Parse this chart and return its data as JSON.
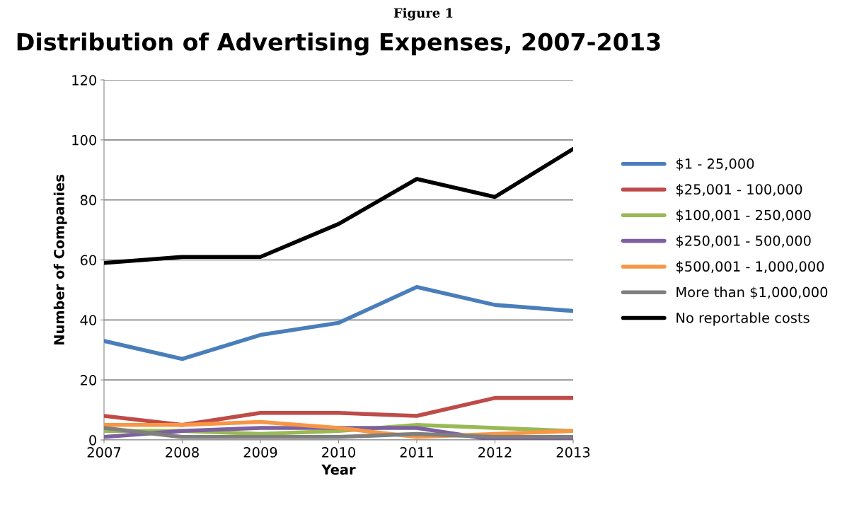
{
  "chart_data": {
    "type": "line",
    "title": "Distribution of Advertising Expenses, 2007-2013",
    "xlabel": "Year",
    "ylabel": "Number of Companies",
    "annotations": [
      "Figure 1"
    ],
    "categories": [
      "2007",
      "2008",
      "2009",
      "2010",
      "2011",
      "2012",
      "2013"
    ],
    "series": [
      {
        "name": "$1 - 25,000",
        "color": "#4a7ebb",
        "values": [
          33,
          27,
          35,
          39,
          51,
          45,
          43
        ]
      },
      {
        "name": "$25,001 - 100,000",
        "color": "#be4b48",
        "values": [
          8,
          5,
          9,
          9,
          8,
          14,
          14
        ]
      },
      {
        "name": "$100,001 - 250,000",
        "color": "#98b954",
        "values": [
          3,
          3,
          2,
          3,
          5,
          4,
          3
        ]
      },
      {
        "name": "$250,001 - 500,000",
        "color": "#7d60a0",
        "values": [
          1,
          3,
          4,
          4,
          4,
          0,
          0
        ]
      },
      {
        "name": "$500,001 - 1,000,000",
        "color": "#f79646",
        "values": [
          5,
          5,
          6,
          4,
          1,
          2,
          3
        ]
      },
      {
        "name": "More than $1,000,000",
        "color": "#7f7f7f",
        "values": [
          4,
          1,
          1,
          1,
          2,
          1,
          1
        ]
      },
      {
        "name": "No reportable costs",
        "color": "#000000",
        "values": [
          59,
          61,
          61,
          72,
          87,
          81,
          97
        ]
      }
    ],
    "ylim": [
      0,
      120
    ],
    "yticks": [
      0,
      20,
      40,
      60,
      80,
      100,
      120
    ],
    "grid": "y",
    "legend": "right",
    "marker": "none",
    "line_style": "solid"
  }
}
